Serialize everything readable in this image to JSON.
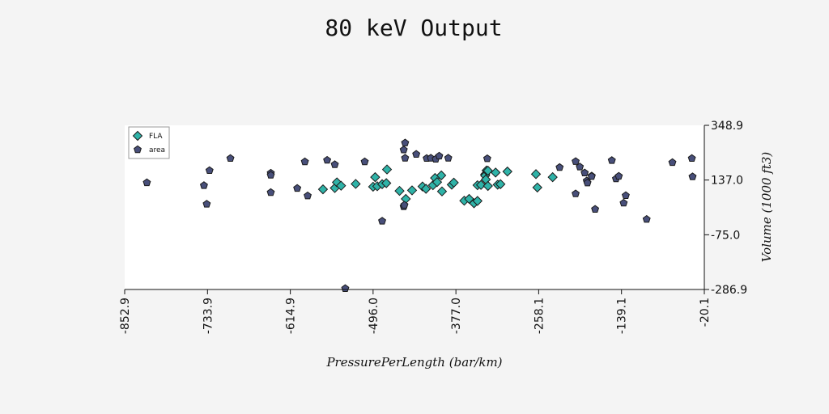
{
  "chart_data": {
    "type": "scatter",
    "title": "80 keV Output",
    "xlabel": "PressurePerLength (bar/km)",
    "ylabel": "Volume (1000 ft3)",
    "xlim": [
      -852.9,
      -20.1
    ],
    "ylim": [
      -286.9,
      348.9
    ],
    "x_ticks": [
      "-852.9",
      "-733.9",
      "-614.9",
      "-496.0",
      "-377.0",
      "-258.1",
      "-139.1",
      "-20.1"
    ],
    "y_ticks": [
      "348.9",
      "137.0",
      "-75.0",
      "-286.9"
    ],
    "legend_position": "top-left",
    "grid": false,
    "series": [
      {
        "name": "FLA",
        "marker": "diamond",
        "color": "#2fb3a8",
        "points": [
          [
            -568,
            101
          ],
          [
            -551,
            106
          ],
          [
            -548,
            128
          ],
          [
            -542,
            115
          ],
          [
            -521,
            122
          ],
          [
            -496,
            111
          ],
          [
            -493,
            148
          ],
          [
            -490,
            113
          ],
          [
            -483,
            121
          ],
          [
            -477,
            125
          ],
          [
            -476,
            178
          ],
          [
            -458,
            95
          ],
          [
            -449,
            64
          ],
          [
            -440,
            97
          ],
          [
            -425,
            112
          ],
          [
            -420,
            103
          ],
          [
            -410,
            117
          ],
          [
            -407,
            145
          ],
          [
            -404,
            129
          ],
          [
            -398,
            155
          ],
          [
            -397,
            93
          ],
          [
            -383,
            119
          ],
          [
            -380,
            127
          ],
          [
            -365,
            57
          ],
          [
            -358,
            64
          ],
          [
            -351,
            47
          ],
          [
            -346,
            56
          ],
          [
            -346,
            117
          ],
          [
            -341,
            118
          ],
          [
            -335,
            159
          ],
          [
            -335,
            154
          ],
          [
            -334,
            139
          ],
          [
            -333,
            174
          ],
          [
            -331,
            173
          ],
          [
            -331,
            114
          ],
          [
            -320,
            166
          ],
          [
            -317,
            119
          ],
          [
            -313,
            121
          ],
          [
            -303,
            170
          ],
          [
            -262,
            160
          ],
          [
            -260,
            108
          ],
          [
            -238,
            148
          ]
        ]
      },
      {
        "name": "area",
        "marker": "pentagon",
        "color": "#484f7a",
        "points": [
          [
            -821,
            127
          ],
          [
            -739,
            116
          ],
          [
            -735,
            44
          ],
          [
            -731,
            174
          ],
          [
            -701,
            221
          ],
          [
            -643,
            164
          ],
          [
            -643,
            156
          ],
          [
            -643,
            89
          ],
          [
            -605,
            105
          ],
          [
            -594,
            208
          ],
          [
            -590,
            76
          ],
          [
            -562,
            214
          ],
          [
            -551,
            197
          ],
          [
            -536,
            -283
          ],
          [
            -508,
            208
          ],
          [
            -483,
            -22
          ],
          [
            -452,
            254
          ],
          [
            -452,
            34
          ],
          [
            -451,
            40
          ],
          [
            -450,
            222
          ],
          [
            -450,
            281
          ],
          [
            -434,
            237
          ],
          [
            -419,
            221
          ],
          [
            -413,
            222
          ],
          [
            -406,
            218
          ],
          [
            -401,
            230
          ],
          [
            -388,
            222
          ],
          [
            -332,
            220
          ],
          [
            -228,
            186
          ],
          [
            -205,
            209
          ],
          [
            -205,
            84
          ],
          [
            -199,
            188
          ],
          [
            -192,
            165
          ],
          [
            -189,
            134
          ],
          [
            -188,
            126
          ],
          [
            -182,
            153
          ],
          [
            -182,
            151
          ],
          [
            -177,
            24
          ],
          [
            -153,
            213
          ],
          [
            -147,
            142
          ],
          [
            -143,
            152
          ],
          [
            -136,
            48
          ],
          [
            -133,
            77
          ],
          [
            -103,
            -15
          ],
          [
            -66,
            205
          ],
          [
            -38,
            221
          ],
          [
            -37,
            150
          ]
        ]
      }
    ]
  }
}
